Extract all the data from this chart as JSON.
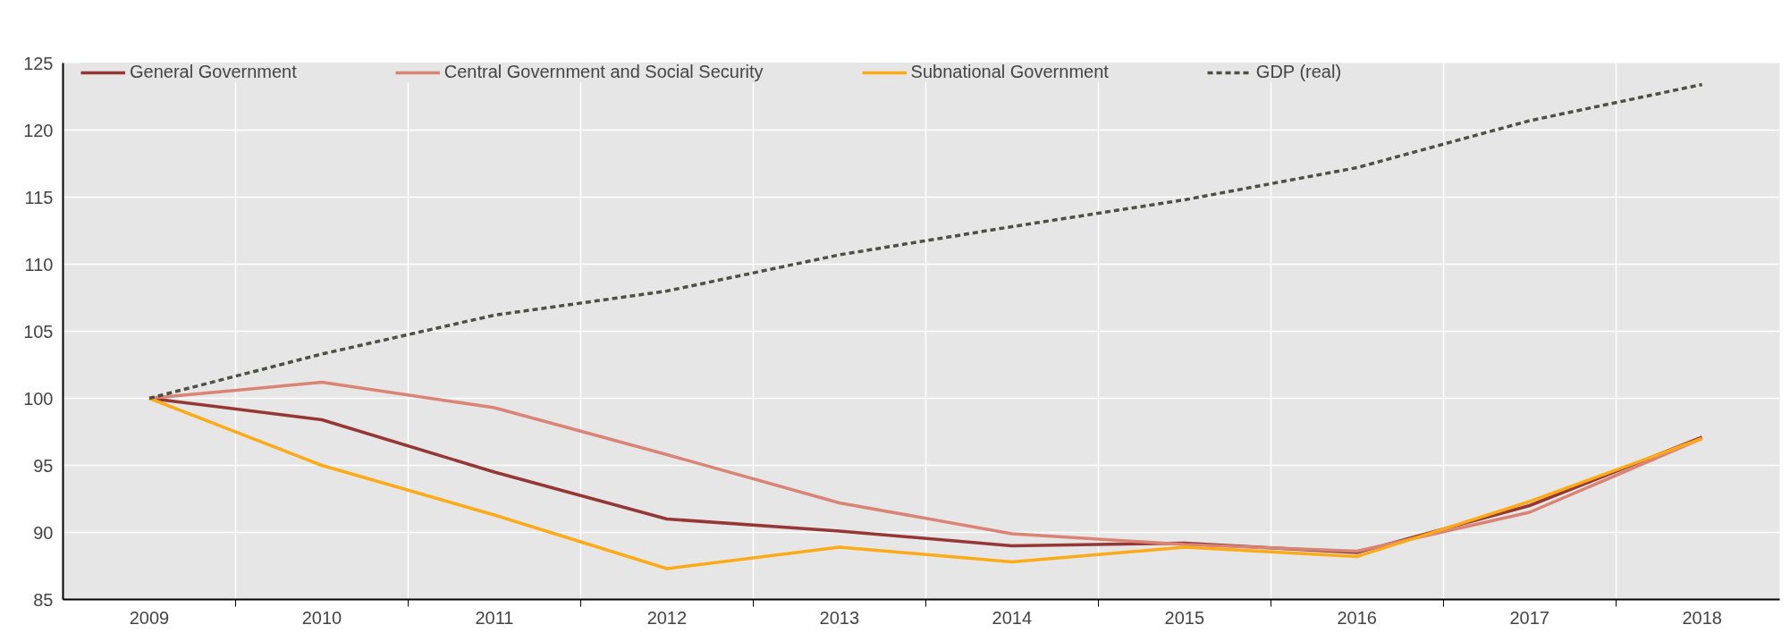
{
  "chart_data": {
    "type": "line",
    "categories": [
      "2009",
      "2010",
      "2011",
      "2012",
      "2013",
      "2014",
      "2015",
      "2016",
      "2017",
      "2018"
    ],
    "series": [
      {
        "name": "General Government",
        "color": "#953735",
        "values": [
          100,
          98.4,
          94.5,
          91.0,
          90.1,
          89.0,
          89.2,
          88.5,
          92.0,
          97.1
        ]
      },
      {
        "name": "Central Government and Social Security",
        "color": "#da8475",
        "values": [
          100,
          101.2,
          99.3,
          95.8,
          92.2,
          89.9,
          89.1,
          88.6,
          91.5,
          97.0
        ]
      },
      {
        "name": "Subnational Government",
        "color": "#fbab18",
        "values": [
          100,
          95.0,
          91.3,
          87.3,
          88.9,
          87.8,
          88.9,
          88.2,
          92.3,
          97.0
        ]
      },
      {
        "name": "GDP (real)",
        "color": "#4f4f44",
        "line_style": "dashed",
        "values": [
          100,
          103.3,
          106.2,
          108.0,
          110.7,
          112.8,
          114.8,
          117.2,
          120.7,
          123.4
        ]
      }
    ],
    "ylim": [
      85,
      125
    ],
    "yticks": [
      85,
      90,
      95,
      100,
      105,
      110,
      115,
      120,
      125
    ],
    "grid": true,
    "legend": "top",
    "marker": "none"
  }
}
